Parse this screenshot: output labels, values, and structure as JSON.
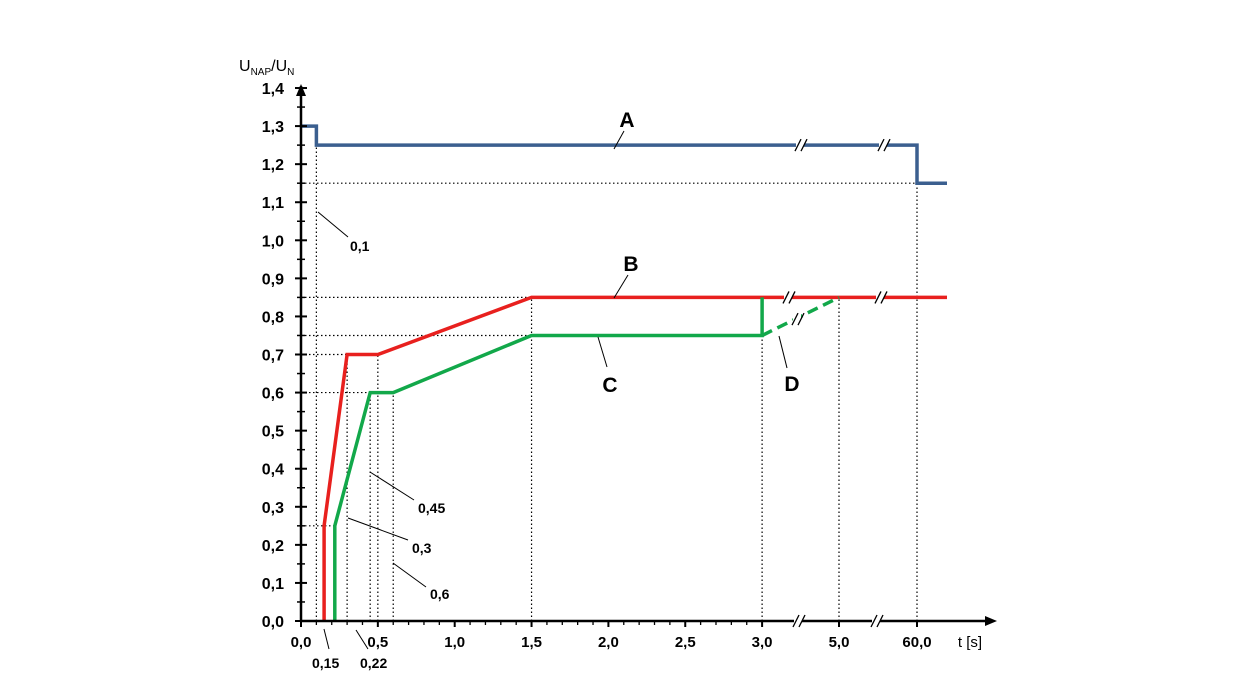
{
  "chart_data": {
    "type": "line",
    "ylabel": {
      "main": "U",
      "sub1": "NAP",
      "slash": "/U",
      "sub2": "N"
    },
    "xlabel": "t [s]",
    "ylim": [
      0,
      1.4
    ],
    "y_ticks": [
      "0,0",
      "0,1",
      "0,2",
      "0,3",
      "0,4",
      "0,5",
      "0,6",
      "0,7",
      "0,8",
      "0,9",
      "1,0",
      "1,1",
      "1,2",
      "1,3",
      "1,4"
    ],
    "x_ticks": [
      "0,0",
      "0,5",
      "1,0",
      "1,5",
      "2,0",
      "2,5",
      "3,0",
      "5,0",
      "60,0"
    ],
    "x_axis_breaks": [
      "between 3,0 and 5,0",
      "between 5,0 and 60,0"
    ],
    "series": [
      {
        "name": "A",
        "color": "#3b5f8f",
        "style": "solid",
        "x": [
          0,
          0.1,
          0.1,
          60,
          60,
          70
        ],
        "y": [
          1.3,
          1.3,
          1.25,
          1.25,
          1.15,
          1.15
        ]
      },
      {
        "name": "B",
        "color": "#e8201e",
        "style": "solid",
        "x": [
          0.15,
          0.15,
          0.3,
          0.5,
          1.5,
          70
        ],
        "y": [
          0,
          0.25,
          0.7,
          0.7,
          0.85,
          0.85
        ]
      },
      {
        "name": "C",
        "color": "#12a84a",
        "style": "solid",
        "x": [
          0.22,
          0.22,
          0.45,
          0.6,
          1.5,
          3.0,
          3.0
        ],
        "y": [
          0,
          0.25,
          0.6,
          0.6,
          0.75,
          0.75,
          0.85
        ]
      },
      {
        "name": "D",
        "color": "#12a84a",
        "style": "dashed",
        "x": [
          3.0,
          5.0
        ],
        "y": [
          0.75,
          0.85
        ]
      }
    ],
    "annotations": [
      "0,1",
      "0,45",
      "0,3",
      "0,6",
      "0,15",
      "0,22"
    ],
    "curve_labels": [
      "A",
      "B",
      "C",
      "D"
    ]
  }
}
